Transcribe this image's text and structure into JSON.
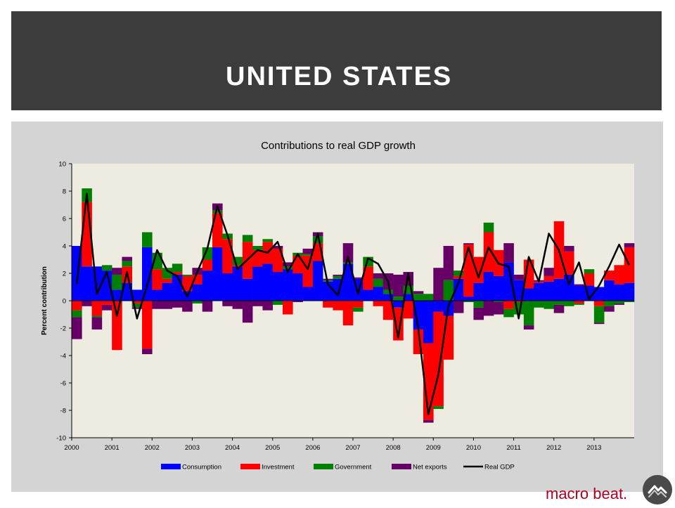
{
  "header": {
    "title": "UNITED STATES"
  },
  "brand": {
    "text": "macro beat.",
    "logo_icon": "mountain-logo-icon"
  },
  "colors": {
    "consumption": "#0000ff",
    "investment": "#ff0000",
    "government": "#008000",
    "net_exports": "#660066",
    "real_gdp": "#000000",
    "plot_bg": "#eeece1"
  },
  "chart_data": {
    "type": "bar",
    "stacked": true,
    "title": "Contributions to real GDP growth",
    "ylabel": "Percent contribution",
    "xlabel": "",
    "ylim": [
      -10,
      10
    ],
    "yticks": [
      -10,
      -8,
      -6,
      -4,
      -2,
      0,
      2,
      4,
      6,
      8,
      10
    ],
    "xticks": [
      "2000",
      "2001",
      "2002",
      "2003",
      "2004",
      "2005",
      "2006",
      "2007",
      "2008",
      "2009",
      "2010",
      "2011",
      "2012",
      "2013"
    ],
    "legend_position": "bottom",
    "quarters": [
      "2000Q1",
      "2000Q2",
      "2000Q3",
      "2000Q4",
      "2001Q1",
      "2001Q2",
      "2001Q3",
      "2001Q4",
      "2002Q1",
      "2002Q2",
      "2002Q3",
      "2002Q4",
      "2003Q1",
      "2003Q2",
      "2003Q3",
      "2003Q4",
      "2004Q1",
      "2004Q2",
      "2004Q3",
      "2004Q4",
      "2005Q1",
      "2005Q2",
      "2005Q3",
      "2005Q4",
      "2006Q1",
      "2006Q2",
      "2006Q3",
      "2006Q4",
      "2007Q1",
      "2007Q2",
      "2007Q3",
      "2007Q4",
      "2008Q1",
      "2008Q2",
      "2008Q3",
      "2008Q4",
      "2009Q1",
      "2009Q2",
      "2009Q3",
      "2009Q4",
      "2010Q1",
      "2010Q2",
      "2010Q3",
      "2010Q4",
      "2011Q1",
      "2011Q2",
      "2011Q3",
      "2011Q4",
      "2012Q1",
      "2012Q2",
      "2012Q3",
      "2012Q4",
      "2013Q1",
      "2013Q2",
      "2013Q3",
      "2013Q4"
    ],
    "series": [
      {
        "name": "Consumption",
        "type": "bar",
        "values": [
          4.0,
          2.5,
          2.5,
          2.2,
          0.8,
          1.3,
          0.8,
          3.9,
          0.8,
          1.3,
          1.9,
          0.7,
          1.2,
          2.2,
          3.9,
          2.0,
          2.5,
          1.6,
          2.5,
          2.7,
          2.1,
          2.3,
          2.0,
          1.0,
          2.9,
          1.4,
          1.6,
          2.7,
          1.6,
          0.8,
          1.0,
          0.5,
          -0.5,
          0.5,
          -2.1,
          -3.1,
          -0.8,
          -1.1,
          1.6,
          0.3,
          1.3,
          2.1,
          1.8,
          2.8,
          1.5,
          0.9,
          1.3,
          1.4,
          1.6,
          1.9,
          1.1,
          1.1,
          1.0,
          1.5,
          1.2,
          1.3
        ]
      },
      {
        "name": "Investment",
        "type": "bar",
        "values": [
          -0.7,
          4.7,
          -1.1,
          -0.3,
          -3.6,
          1.2,
          -0.2,
          -3.5,
          1.5,
          0.3,
          0.2,
          1.1,
          0.7,
          0.8,
          2.5,
          2.5,
          0.1,
          2.7,
          1.2,
          1.6,
          1.7,
          -1.0,
          1.3,
          2.3,
          1.3,
          -0.5,
          -0.7,
          -1.8,
          -0.5,
          1.7,
          -0.4,
          -1.4,
          -2.4,
          -1.3,
          -1.8,
          -5.6,
          -6.9,
          -3.2,
          0.2,
          3.8,
          1.9,
          2.9,
          1.9,
          -0.6,
          -0.1,
          2.1,
          0.1,
          0.4,
          4.2,
          1.7,
          -0.2,
          0.9,
          -0.4,
          0.7,
          1.4,
          2.6
        ]
      },
      {
        "name": "Government",
        "type": "bar",
        "values": [
          -0.5,
          1.0,
          -0.1,
          0.4,
          1.1,
          0.4,
          -0.3,
          1.1,
          1.2,
          0.8,
          0.6,
          0.1,
          -0.2,
          0.9,
          0.2,
          0.4,
          0.6,
          0.5,
          0.3,
          0.2,
          -0.3,
          0.2,
          0.2,
          0.1,
          0.5,
          0.1,
          0.2,
          0.1,
          -0.3,
          0.7,
          0.6,
          0.3,
          0.3,
          0.6,
          0.5,
          0.5,
          -0.2,
          1.5,
          0.4,
          -0.1,
          -0.5,
          0.7,
          -0.1,
          -0.6,
          -0.9,
          -1.8,
          -0.5,
          -0.6,
          -0.3,
          -0.4,
          -0.1,
          0.3,
          -1.2,
          -0.4,
          -0.2,
          -0.1
        ]
      },
      {
        "name": "Net exports",
        "type": "bar",
        "values": [
          -1.6,
          -0.4,
          -0.9,
          -0.4,
          0.5,
          0.3,
          -0.1,
          -0.4,
          -0.6,
          -0.6,
          -0.5,
          -0.8,
          0.5,
          -0.8,
          0.5,
          -0.4,
          -0.6,
          -1.6,
          -0.4,
          -0.7,
          0.2,
          0.3,
          -0.1,
          0.4,
          0.3,
          0.1,
          0.1,
          1.4,
          0.1,
          0.0,
          0.4,
          1.2,
          1.6,
          1.0,
          0.2,
          -0.2,
          2.4,
          2.5,
          -0.9,
          0.1,
          -0.9,
          -1.1,
          -0.9,
          1.4,
          0.4,
          -0.3,
          0.1,
          0.6,
          -0.6,
          0.4,
          0.1,
          0.0,
          -0.1,
          -0.4,
          -0.1,
          0.3
        ]
      },
      {
        "name": "Real GDP",
        "type": "line",
        "values": [
          1.2,
          7.8,
          0.5,
          2.1,
          -1.1,
          2.1,
          -1.3,
          1.1,
          3.7,
          2.2,
          1.8,
          0.3,
          2.1,
          3.8,
          6.9,
          4.8,
          2.3,
          3.0,
          3.7,
          3.5,
          4.3,
          2.1,
          3.4,
          2.3,
          4.9,
          1.2,
          0.4,
          3.2,
          0.5,
          3.1,
          2.7,
          1.4,
          -2.7,
          2.0,
          -2.0,
          -8.3,
          -5.4,
          -0.4,
          1.3,
          3.9,
          1.7,
          3.9,
          2.7,
          2.5,
          -1.3,
          3.2,
          1.4,
          4.9,
          3.7,
          1.2,
          2.8,
          0.1,
          1.1,
          2.5,
          4.1,
          2.6
        ]
      }
    ]
  }
}
